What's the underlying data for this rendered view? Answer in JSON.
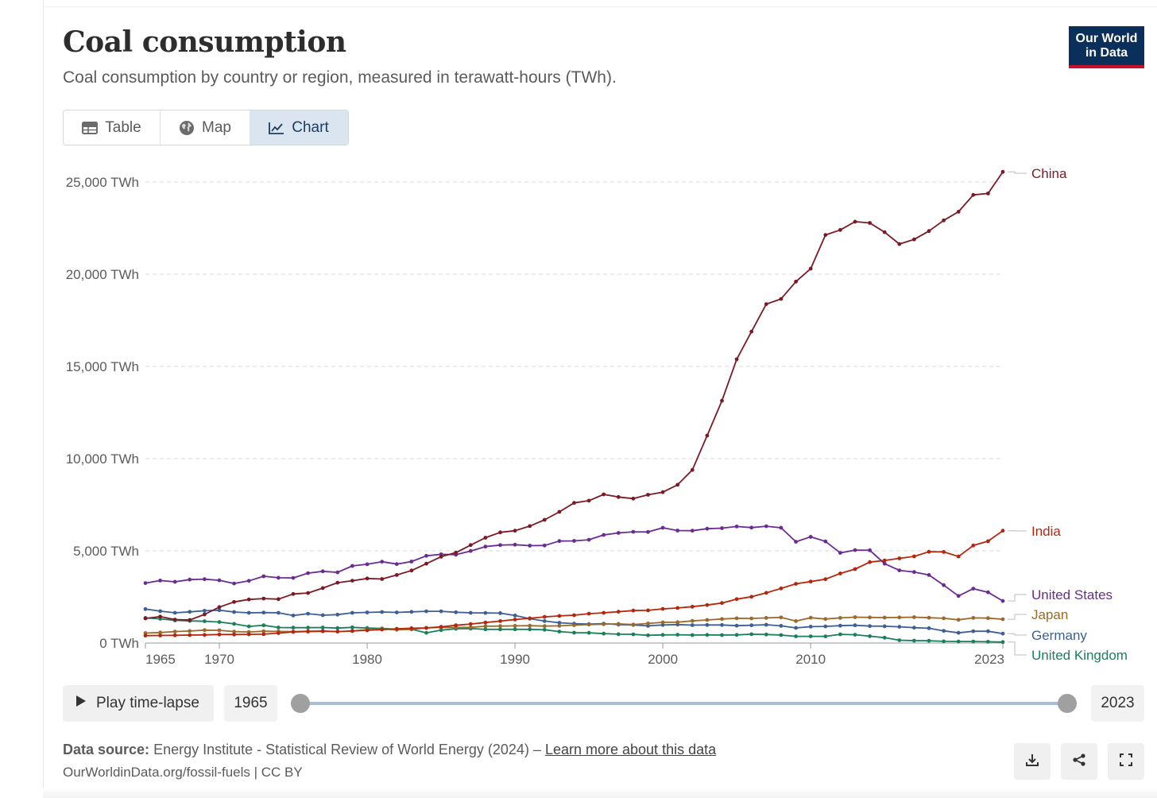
{
  "header": {
    "title": "Coal consumption",
    "subtitle": "Coal consumption by country or region, measured in terawatt-hours (TWh).",
    "logo_line1": "Our World",
    "logo_line2": "in Data"
  },
  "tabs": [
    {
      "label": "Table",
      "icon": "table-icon"
    },
    {
      "label": "Map",
      "icon": "globe-icon"
    },
    {
      "label": "Chart",
      "icon": "line-chart-icon",
      "active": true
    }
  ],
  "timeline": {
    "play_label": "Play time-lapse",
    "start_year": "1965",
    "end_year": "2023"
  },
  "footer": {
    "source_label": "Data source:",
    "source_text": "Energy Institute - Statistical Review of World Energy (2024) –",
    "source_link": "Learn more about this data",
    "url_license": "OurWorldinData.org/fossil-fuels | CC BY"
  },
  "colors": {
    "china": "#7b1a25",
    "india": "#b5270d",
    "united_states": "#6a2c91",
    "japan": "#9a6a2a",
    "germany": "#3d5f94",
    "united_kingdom": "#19805a",
    "logo_bg": "#0b2f5b",
    "logo_accent": "#c8102e",
    "active_tab": "#dbe5f0"
  },
  "chart_data": {
    "type": "line",
    "ylim": [
      0,
      25000
    ],
    "xlim": [
      1965,
      2023
    ],
    "y_ticks": [
      0,
      5000,
      10000,
      15000,
      20000,
      25000
    ],
    "y_tick_labels": [
      "0 TWh",
      "5,000 TWh",
      "10,000 TWh",
      "15,000 TWh",
      "20,000 TWh",
      "25,000 TWh"
    ],
    "x_ticks": [
      1965,
      1970,
      1980,
      1990,
      2000,
      2010,
      2023
    ],
    "x_tick_labels": [
      "1965",
      "1970",
      "1980",
      "1990",
      "2000",
      "2010",
      "2023"
    ],
    "grid": "horizontal dashed",
    "x": [
      1965,
      1966,
      1967,
      1968,
      1969,
      1970,
      1971,
      1972,
      1973,
      1974,
      1975,
      1976,
      1977,
      1978,
      1979,
      1980,
      1981,
      1982,
      1983,
      1984,
      1985,
      1986,
      1987,
      1988,
      1989,
      1990,
      1991,
      1992,
      1993,
      1994,
      1995,
      1996,
      1997,
      1998,
      1999,
      2000,
      2001,
      2002,
      2003,
      2004,
      2005,
      2006,
      2007,
      2008,
      2009,
      2010,
      2011,
      2012,
      2013,
      2014,
      2015,
      2016,
      2017,
      2018,
      2019,
      2020,
      2021,
      2022,
      2023
    ],
    "series": [
      {
        "name": "China",
        "color_key": "china",
        "values": [
          1330,
          1430,
          1270,
          1250,
          1550,
          1950,
          2230,
          2360,
          2410,
          2380,
          2660,
          2710,
          2980,
          3270,
          3380,
          3500,
          3470,
          3690,
          3930,
          4300,
          4680,
          4900,
          5310,
          5710,
          6000,
          6090,
          6340,
          6680,
          7110,
          7600,
          7720,
          8060,
          7920,
          7830,
          8040,
          8180,
          8580,
          9390,
          11250,
          13140,
          15390,
          16890,
          18380,
          18660,
          19600,
          20300,
          22130,
          22400,
          22850,
          22780,
          22280,
          21640,
          21890,
          22340,
          22920,
          23390,
          24300,
          24380,
          25550
        ]
      },
      {
        "name": "India",
        "color_key": "india",
        "values": [
          400,
          410,
          420,
          430,
          440,
          460,
          460,
          470,
          480,
          540,
          600,
          620,
          640,
          620,
          650,
          690,
          730,
          770,
          800,
          820,
          880,
          960,
          1030,
          1110,
          1190,
          1270,
          1340,
          1420,
          1470,
          1510,
          1590,
          1640,
          1700,
          1760,
          1770,
          1850,
          1900,
          1970,
          2060,
          2170,
          2380,
          2510,
          2720,
          2960,
          3210,
          3330,
          3460,
          3770,
          4010,
          4390,
          4480,
          4590,
          4700,
          4950,
          4940,
          4690,
          5290,
          5520,
          6090
        ]
      },
      {
        "name": "United States",
        "color_key": "united_states",
        "values": [
          3250,
          3390,
          3320,
          3440,
          3460,
          3400,
          3230,
          3370,
          3620,
          3540,
          3530,
          3790,
          3890,
          3830,
          4180,
          4270,
          4410,
          4280,
          4420,
          4730,
          4810,
          4790,
          4990,
          5230,
          5310,
          5330,
          5280,
          5290,
          5530,
          5540,
          5600,
          5860,
          5970,
          6030,
          6020,
          6250,
          6100,
          6090,
          6200,
          6230,
          6320,
          6260,
          6330,
          6250,
          5490,
          5760,
          5510,
          4890,
          5040,
          5030,
          4300,
          3940,
          3850,
          3690,
          3140,
          2550,
          2950,
          2750,
          2280
        ]
      },
      {
        "name": "Japan",
        "color_key": "japan",
        "values": [
          540,
          570,
          620,
          650,
          700,
          690,
          620,
          600,
          640,
          630,
          620,
          640,
          650,
          620,
          650,
          720,
          760,
          720,
          740,
          820,
          850,
          840,
          850,
          910,
          920,
          930,
          940,
          920,
          930,
          970,
          1000,
          1020,
          1040,
          1000,
          1060,
          1120,
          1130,
          1200,
          1250,
          1300,
          1340,
          1330,
          1360,
          1390,
          1190,
          1370,
          1300,
          1360,
          1400,
          1390,
          1380,
          1390,
          1400,
          1370,
          1340,
          1260,
          1360,
          1350,
          1290
        ]
      },
      {
        "name": "Germany",
        "color_key": "germany",
        "values": [
          1840,
          1730,
          1640,
          1690,
          1750,
          1780,
          1680,
          1640,
          1650,
          1640,
          1490,
          1590,
          1510,
          1540,
          1640,
          1660,
          1680,
          1660,
          1690,
          1720,
          1720,
          1670,
          1640,
          1630,
          1620,
          1490,
          1320,
          1190,
          1100,
          1050,
          1030,
          1050,
          1000,
          980,
          930,
          980,
          1000,
          970,
          980,
          980,
          940,
          960,
          990,
          930,
          820,
          890,
          900,
          940,
          960,
          920,
          910,
          880,
          830,
          800,
          660,
          550,
          640,
          640,
          510
        ]
      },
      {
        "name": "United Kingdom",
        "color_key": "united_kingdom",
        "values": [
          1360,
          1310,
          1230,
          1200,
          1180,
          1140,
          1040,
          900,
          960,
          840,
          830,
          830,
          840,
          810,
          850,
          810,
          790,
          750,
          750,
          550,
          700,
          770,
          780,
          740,
          740,
          740,
          740,
          720,
          620,
          560,
          550,
          510,
          480,
          470,
          420,
          440,
          450,
          430,
          440,
          430,
          440,
          480,
          460,
          430,
          360,
          360,
          360,
          470,
          450,
          370,
          290,
          150,
          130,
          120,
          90,
          80,
          80,
          70,
          50
        ]
      }
    ]
  }
}
